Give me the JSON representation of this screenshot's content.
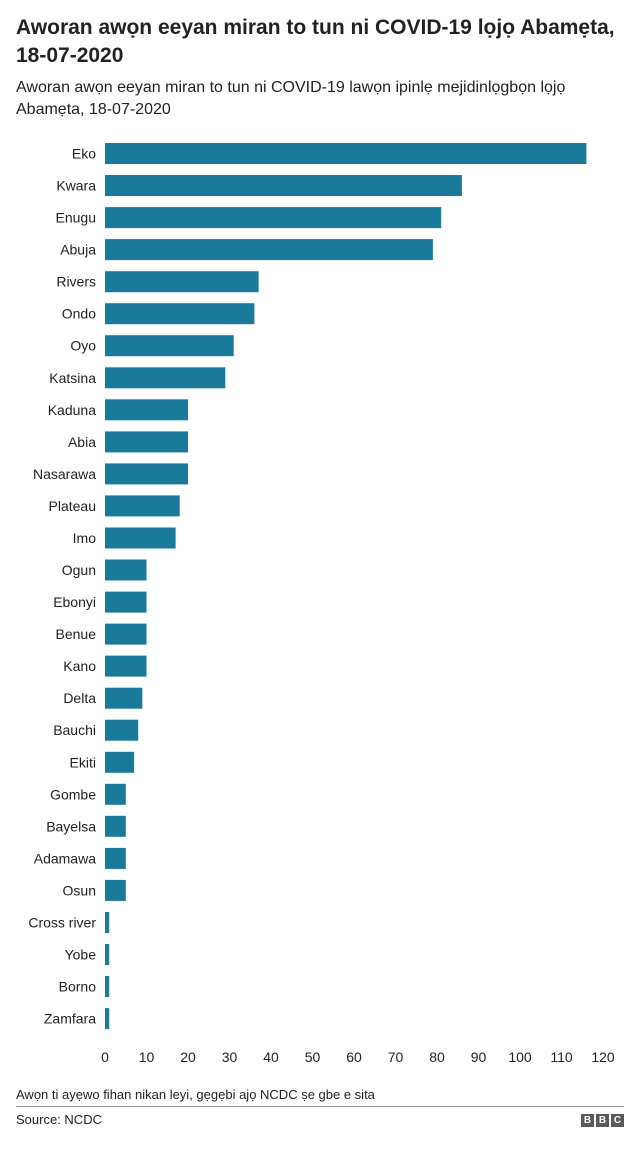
{
  "chart_data": {
    "type": "bar",
    "orientation": "horizontal",
    "title": "Aworan awọn eeyan miran to tun ni COVID-19 lọjọ Abamẹta, 18-07-2020",
    "subtitle": "Aworan awọn eeyan miran to tun ni COVID-19 lawọn ipinlẹ mejidinlọgbọn lọjọ Abamẹta, 18-07-2020",
    "categories": [
      "Eko",
      "Kwara",
      "Enugu",
      "Abuja",
      "Rivers",
      "Ondo",
      "Oyo",
      "Katsina",
      "Kaduna",
      "Abia",
      "Nasarawa",
      "Plateau",
      "Imo",
      "Ogun",
      "Ebonyi",
      "Benue",
      "Kano",
      "Delta",
      "Bauchi",
      "Ekiti",
      "Gombe",
      "Bayelsa",
      "Adamawa",
      "Osun",
      "Cross river",
      "Yobe",
      "Borno",
      "Zamfara"
    ],
    "values": [
      116,
      86,
      81,
      79,
      37,
      36,
      31,
      29,
      20,
      20,
      20,
      18,
      17,
      10,
      10,
      10,
      10,
      9,
      8,
      7,
      5,
      5,
      5,
      5,
      1,
      1,
      1,
      1
    ],
    "xlim": [
      0,
      120
    ],
    "xticks": [
      "0",
      "10",
      "20",
      "30",
      "40",
      "50",
      "60",
      "70",
      "80",
      "90",
      "100",
      "110",
      "120"
    ],
    "bar_color": "#1a7a9c",
    "grid": false
  },
  "footnote": "Awọn ti ayẹwo fihan nikan leyi, gẹgẹbi ajọ NCDC ṣe gbe e sita",
  "source": "Source: NCDC",
  "logo": [
    "B",
    "B",
    "C"
  ]
}
